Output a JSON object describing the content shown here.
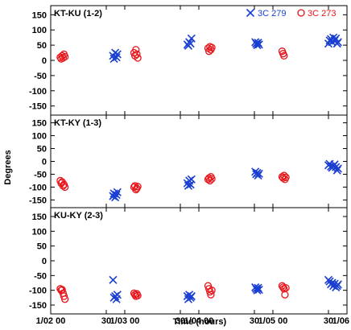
{
  "chart_data": {
    "type": "scatter",
    "xlabel": "Time (hours)",
    "ylabel": "Degrees",
    "xlim": [
      0,
      96
    ],
    "ylim": [
      -180,
      180
    ],
    "x_ticks": [
      {
        "x": 0,
        "label": "1/02 00"
      },
      {
        "x": 18,
        "label": "30"
      },
      {
        "x": 24,
        "label": "1/03 00"
      },
      {
        "x": 42,
        "label": "30"
      },
      {
        "x": 48,
        "label": "1/04 00"
      },
      {
        "x": 66,
        "label": "30"
      },
      {
        "x": 72,
        "label": "1/05 00"
      },
      {
        "x": 90,
        "label": "30"
      },
      {
        "x": 96,
        "label": "1/06 00"
      }
    ],
    "y_ticks": [
      "150",
      "100",
      "50",
      "0",
      "-50",
      "-100",
      "-150"
    ],
    "y_tick_values": [
      150,
      100,
      50,
      0,
      -50,
      -100,
      -150
    ],
    "legend": {
      "placement": "top-right",
      "entries": [
        {
          "name": "3C 279",
          "marker": "x",
          "color": "#1a3fd1"
        },
        {
          "name": "3C 273",
          "marker": "o",
          "color": "#e8141a"
        }
      ]
    },
    "colors": {
      "3C 279": "#1a3fd1",
      "3C 273": "#e8141a"
    },
    "panels": [
      {
        "title": "KT-KU (1-2)",
        "series": [
          {
            "name": "3C 279",
            "marker": "x",
            "x": [
              20.2,
              20.5,
              20.9,
              21.3,
              21.6,
              44.3,
              44.6,
              44.9,
              45.3,
              45.6,
              66.3,
              66.6,
              66.9,
              67.2,
              67.5,
              90.0,
              90.4,
              90.8,
              91.2,
              91.6,
              92.0,
              92.4,
              92.8,
              93.1
            ],
            "y": [
              15,
              5,
              25,
              10,
              20,
              52,
              48,
              60,
              55,
              72,
              60,
              55,
              50,
              58,
              52,
              55,
              65,
              70,
              60,
              75,
              65,
              72,
              55,
              60
            ]
          },
          {
            "name": "3C 273",
            "marker": "o",
            "x": [
              3.1,
              3.4,
              3.7,
              4.0,
              4.3,
              4.6,
              27.0,
              27.3,
              27.6,
              27.9,
              28.2,
              51.0,
              51.3,
              51.6,
              51.9,
              52.2,
              75.0,
              75.3,
              75.6
            ],
            "y": [
              10,
              5,
              15,
              8,
              20,
              12,
              25,
              15,
              35,
              20,
              8,
              40,
              30,
              45,
              35,
              42,
              30,
              22,
              15
            ]
          }
        ]
      },
      {
        "title": "KT-KY (1-3)",
        "series": [
          {
            "name": "3C 279",
            "marker": "x",
            "x": [
              20.2,
              20.5,
              20.9,
              21.3,
              21.6,
              44.3,
              44.6,
              44.9,
              45.3,
              45.6,
              66.3,
              66.6,
              66.9,
              67.2,
              67.5,
              90.0,
              90.4,
              90.8,
              91.2,
              91.6,
              92.0,
              92.4,
              92.8,
              93.1
            ],
            "y": [
              -135,
              -125,
              -140,
              -130,
              -120,
              -85,
              -95,
              -75,
              -90,
              -70,
              -40,
              -50,
              -45,
              -55,
              -48,
              -15,
              -10,
              -20,
              -25,
              -18,
              -12,
              -22,
              -35,
              -28
            ]
          },
          {
            "name": "3C 273",
            "marker": "o",
            "x": [
              3.1,
              3.4,
              3.7,
              4.0,
              4.3,
              4.6,
              27.0,
              27.3,
              27.6,
              27.9,
              28.2,
              51.0,
              51.3,
              51.6,
              51.9,
              52.2,
              75.0,
              75.3,
              75.6,
              75.9,
              76.2
            ],
            "y": [
              -75,
              -85,
              -80,
              -95,
              -90,
              -100,
              -100,
              -95,
              -110,
              -105,
              -98,
              -70,
              -65,
              -75,
              -60,
              -68,
              -60,
              -65,
              -55,
              -70,
              -62
            ]
          }
        ]
      },
      {
        "title": "KU-KY (2-3)",
        "series": [
          {
            "name": "3C 279",
            "marker": "x",
            "x": [
              20.2,
              20.5,
              20.9,
              21.3,
              21.6,
              44.3,
              44.6,
              44.9,
              45.3,
              45.6,
              66.3,
              66.6,
              66.9,
              67.2,
              67.5,
              90.0,
              90.4,
              90.8,
              91.2,
              91.6,
              92.0,
              92.4,
              92.8,
              93.1
            ],
            "y": [
              -65,
              -125,
              -120,
              -130,
              -115,
              -120,
              -130,
              -115,
              -125,
              -120,
              -90,
              -95,
              -100,
              -92,
              -98,
              -65,
              -70,
              -80,
              -75,
              -85,
              -78,
              -90,
              -85,
              -80
            ]
          },
          {
            "name": "3C 273",
            "marker": "o",
            "x": [
              3.1,
              3.4,
              3.7,
              4.0,
              4.3,
              4.6,
              27.0,
              27.3,
              27.6,
              27.9,
              28.2,
              51.0,
              51.3,
              51.6,
              51.9,
              52.2,
              75.0,
              75.3,
              75.6,
              75.9,
              76.2
            ],
            "y": [
              -95,
              -100,
              -98,
              -110,
              -120,
              -130,
              -110,
              -115,
              -120,
              -112,
              -118,
              -85,
              -95,
              -105,
              -115,
              -100,
              -85,
              -90,
              -95,
              -115,
              -92
            ]
          }
        ]
      }
    ]
  }
}
